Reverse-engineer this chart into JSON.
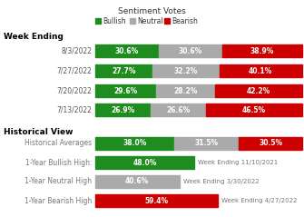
{
  "title": "Sentiment Votes",
  "week_ending_label": "Week Ending",
  "legend": [
    "Bullish",
    "Neutral",
    "Bearish"
  ],
  "legend_colors": [
    "#1e8c1e",
    "#aaaaaa",
    "#cc0000"
  ],
  "weekly_rows": [
    {
      "label": "8/3/2022",
      "bullish": 30.6,
      "neutral": 30.6,
      "bearish": 38.9
    },
    {
      "label": "7/27/2022",
      "bullish": 27.7,
      "neutral": 32.2,
      "bearish": 40.1
    },
    {
      "label": "7/20/2022",
      "bullish": 29.6,
      "neutral": 28.2,
      "bearish": 42.2
    },
    {
      "label": "7/13/2022",
      "bullish": 26.9,
      "neutral": 26.6,
      "bearish": 46.5
    }
  ],
  "historical_label": "Historical View",
  "historical_rows": [
    {
      "label": "Historical Averages",
      "type": "full",
      "bullish": 38.0,
      "neutral": 31.5,
      "bearish": 30.5,
      "note": ""
    },
    {
      "label": "1-Year Bullish High:",
      "type": "bullish",
      "value": 48.0,
      "note": "Week Ending 11/10/2021"
    },
    {
      "label": "1-Year Neutral High",
      "type": "neutral",
      "value": 40.6,
      "note": "Week Ending 3/30/2022"
    },
    {
      "label": "1-Year Bearish High",
      "type": "bearish",
      "value": 59.4,
      "note": "Week Ending 4/27/2022"
    }
  ],
  "bullish_color": "#1e8c1e",
  "neutral_color": "#aaaaaa",
  "bearish_color": "#cc0000",
  "note_color": "#777777",
  "bg_color": "#ffffff"
}
